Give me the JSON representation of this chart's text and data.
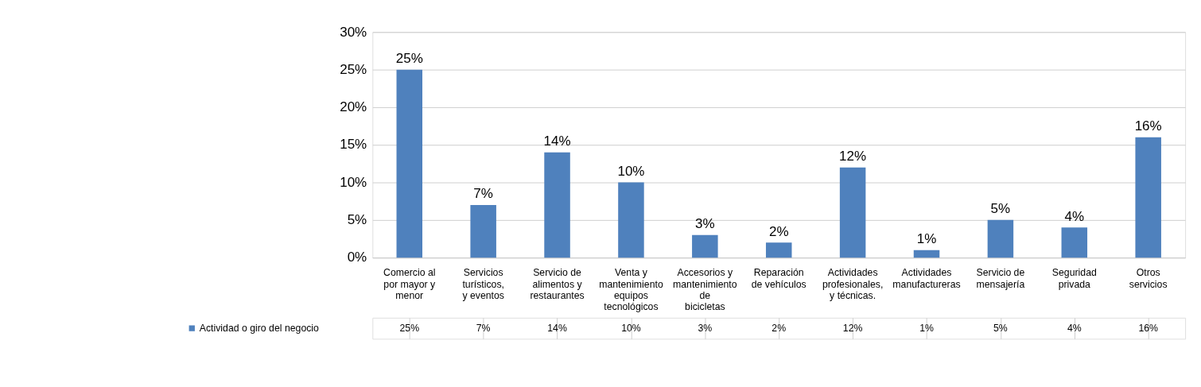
{
  "chart_data": {
    "type": "bar",
    "categories": [
      "Comercio al por mayor y menor",
      "Servicios turísticos, y eventos",
      "Servicio de alimentos y restaurantes",
      "Venta y mantenimiento equipos tecnológicos",
      "Accesorios y mantenimiento de bicicletas",
      "Reparación de vehículos",
      "Actividades profesionales, y técnicas.",
      "Actividades manufactureras",
      "Servicio de mensajería",
      "Seguridad privada",
      "Otros servicios"
    ],
    "series": [
      {
        "name": "Actividad o giro del negocio",
        "color": "#4f81bd",
        "values": [
          25,
          7,
          14,
          10,
          3,
          2,
          12,
          1,
          5,
          4,
          16
        ]
      }
    ],
    "ylim": [
      0,
      30
    ],
    "yticks": [
      {
        "value": 0,
        "label": "0%"
      },
      {
        "value": 5,
        "label": "5%"
      },
      {
        "value": 10,
        "label": "10%"
      },
      {
        "value": 15,
        "label": "15%"
      },
      {
        "value": 20,
        "label": "20%"
      },
      {
        "value": 25,
        "label": "25%"
      },
      {
        "value": 30,
        "label": "30%"
      }
    ],
    "value_labels": [
      "25%",
      "7%",
      "14%",
      "10%",
      "3%",
      "2%",
      "12%",
      "1%",
      "5%",
      "4%",
      "16%"
    ],
    "grid": "y",
    "legend": "bottom"
  }
}
